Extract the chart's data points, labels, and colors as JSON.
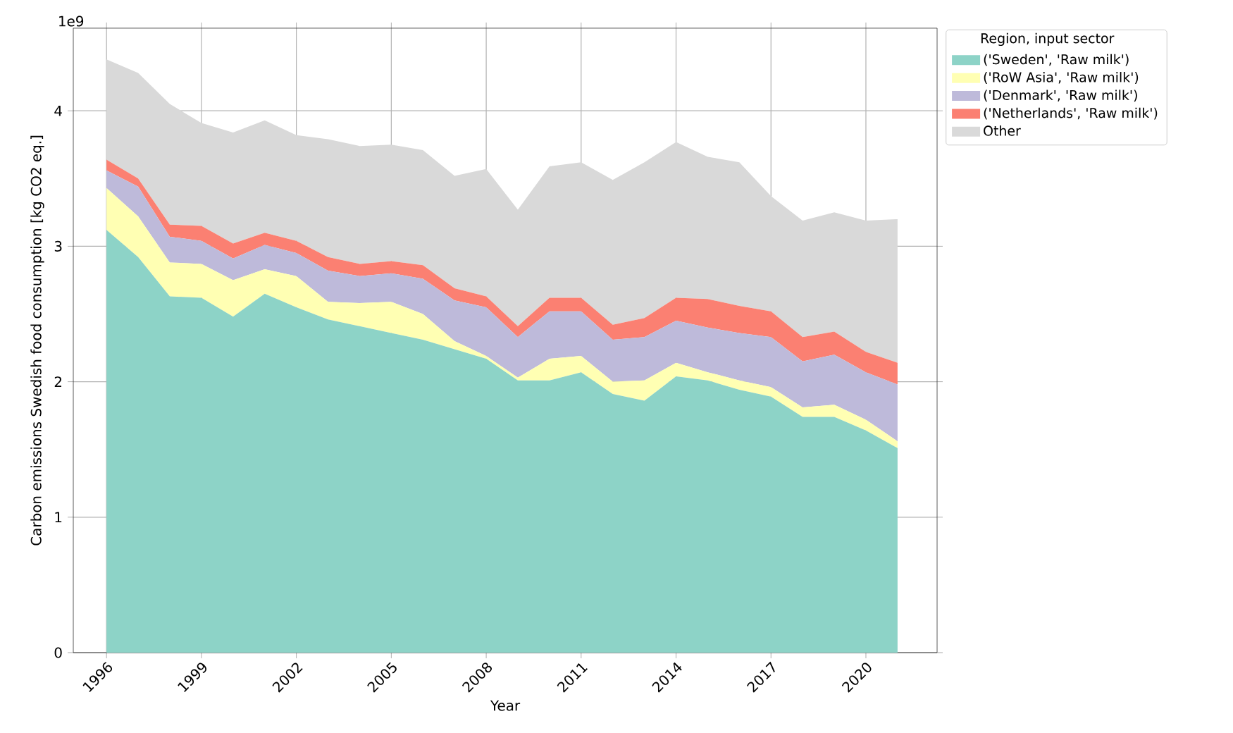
{
  "chart_data": {
    "type": "area",
    "stacked": true,
    "xlabel": "Year",
    "ylabel": "Carbon emissions Swedish food consumption [kg CO2 eq.]",
    "legend_title": "Region, input sector",
    "annotations": [
      "1e9"
    ],
    "x": [
      1996,
      1997,
      1998,
      1999,
      2000,
      2001,
      2002,
      2003,
      2004,
      2005,
      2006,
      2007,
      2008,
      2009,
      2010,
      2011,
      2012,
      2013,
      2014,
      2015,
      2016,
      2017,
      2018,
      2019,
      2020,
      2021
    ],
    "series": [
      {
        "name": "('Sweden', 'Raw milk')",
        "color": "#8dd3c7",
        "values": [
          3.12,
          2.92,
          2.63,
          2.62,
          2.48,
          2.65,
          2.55,
          2.46,
          2.41,
          2.36,
          2.31,
          2.24,
          2.17,
          2.01,
          2.01,
          2.07,
          1.91,
          1.86,
          2.04,
          2.01,
          1.94,
          1.89,
          1.74,
          1.74,
          1.64,
          1.51
        ]
      },
      {
        "name": "('RoW Asia', 'Raw milk')",
        "color": "#ffffb3",
        "values": [
          0.31,
          0.3,
          0.25,
          0.25,
          0.27,
          0.18,
          0.23,
          0.13,
          0.17,
          0.23,
          0.19,
          0.06,
          0.02,
          0.02,
          0.16,
          0.12,
          0.09,
          0.15,
          0.1,
          0.06,
          0.07,
          0.07,
          0.07,
          0.09,
          0.08,
          0.05
        ]
      },
      {
        "name": "('Denmark', 'Raw milk')",
        "color": "#bebada",
        "values": [
          0.13,
          0.22,
          0.19,
          0.17,
          0.16,
          0.18,
          0.17,
          0.23,
          0.2,
          0.21,
          0.26,
          0.3,
          0.36,
          0.3,
          0.35,
          0.33,
          0.31,
          0.32,
          0.31,
          0.33,
          0.35,
          0.37,
          0.34,
          0.37,
          0.35,
          0.42
        ]
      },
      {
        "name": "('Netherlands', 'Raw milk')",
        "color": "#fb8072",
        "values": [
          0.08,
          0.06,
          0.09,
          0.11,
          0.11,
          0.09,
          0.09,
          0.1,
          0.09,
          0.09,
          0.1,
          0.09,
          0.08,
          0.08,
          0.1,
          0.1,
          0.11,
          0.14,
          0.17,
          0.21,
          0.2,
          0.19,
          0.18,
          0.17,
          0.15,
          0.16
        ]
      },
      {
        "name": "Other",
        "color": "#d9d9d9",
        "values": [
          0.74,
          0.78,
          0.89,
          0.76,
          0.82,
          0.83,
          0.78,
          0.87,
          0.87,
          0.86,
          0.85,
          0.83,
          0.94,
          0.86,
          0.97,
          1.0,
          1.07,
          1.15,
          1.15,
          1.05,
          1.06,
          0.85,
          0.86,
          0.88,
          0.97,
          1.06
        ]
      }
    ],
    "xlim": [
      1994.95,
      2022.25
    ],
    "ylim": [
      0,
      4.61
    ],
    "xticks": [
      1996,
      1999,
      2002,
      2005,
      2008,
      2011,
      2014,
      2017,
      2020
    ],
    "yticks": [
      0,
      1,
      2,
      3,
      4
    ],
    "grid": true,
    "legend": "right"
  }
}
